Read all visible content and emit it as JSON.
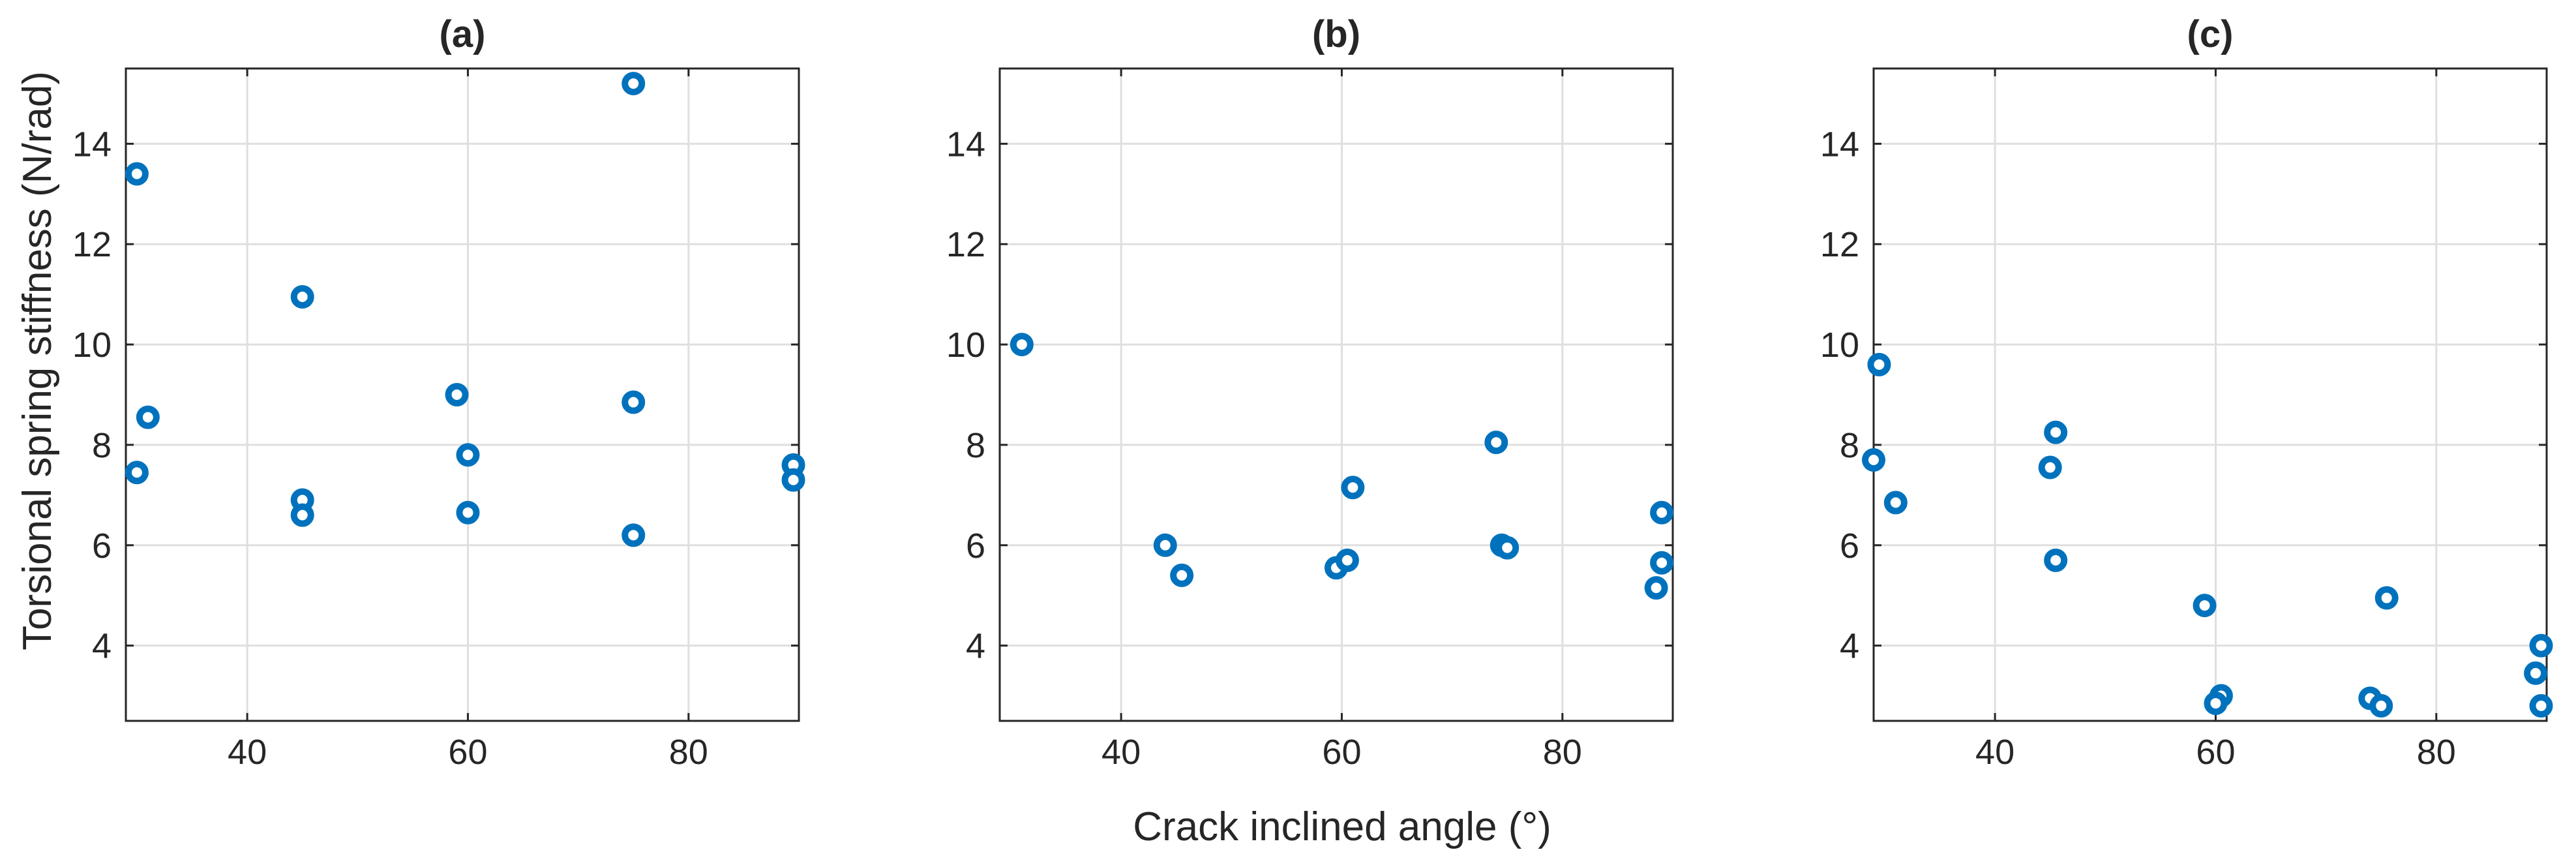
{
  "chart_data": {
    "type": "scatter",
    "xlabel": "Crack inclined angle (°)",
    "ylabel": "Torsional spring stiffness (N/rad)",
    "xlim": [
      29,
      90
    ],
    "ylim": [
      2.5,
      15.5
    ],
    "xticks": [
      40,
      60,
      80
    ],
    "yticks": [
      4,
      6,
      8,
      10,
      12,
      14
    ],
    "grid": true,
    "marker_color": "#0072BD",
    "panels": [
      {
        "title": "(a)",
        "points": [
          {
            "x": 30,
            "y": 13.4
          },
          {
            "x": 30,
            "y": 7.45
          },
          {
            "x": 31,
            "y": 8.55
          },
          {
            "x": 45,
            "y": 10.95
          },
          {
            "x": 45,
            "y": 6.9
          },
          {
            "x": 45,
            "y": 6.6
          },
          {
            "x": 59,
            "y": 9.0
          },
          {
            "x": 60,
            "y": 7.8
          },
          {
            "x": 60,
            "y": 6.65
          },
          {
            "x": 75,
            "y": 15.2
          },
          {
            "x": 75,
            "y": 8.85
          },
          {
            "x": 75,
            "y": 6.2
          },
          {
            "x": 89.5,
            "y": 7.6
          },
          {
            "x": 89.5,
            "y": 7.3
          }
        ]
      },
      {
        "title": "(b)",
        "points": [
          {
            "x": 31,
            "y": 10.0
          },
          {
            "x": 44,
            "y": 6.0
          },
          {
            "x": 45.5,
            "y": 5.4
          },
          {
            "x": 59.5,
            "y": 5.55
          },
          {
            "x": 60.5,
            "y": 5.7
          },
          {
            "x": 61,
            "y": 7.15
          },
          {
            "x": 74,
            "y": 8.05
          },
          {
            "x": 74.5,
            "y": 6.0
          },
          {
            "x": 75,
            "y": 5.95
          },
          {
            "x": 89,
            "y": 6.65
          },
          {
            "x": 89,
            "y": 5.65
          },
          {
            "x": 88.5,
            "y": 5.15
          }
        ]
      },
      {
        "title": "(c)",
        "points": [
          {
            "x": 29.5,
            "y": 9.6
          },
          {
            "x": 29,
            "y": 7.7
          },
          {
            "x": 31,
            "y": 6.85
          },
          {
            "x": 45.5,
            "y": 8.25
          },
          {
            "x": 45,
            "y": 7.55
          },
          {
            "x": 45.5,
            "y": 5.7
          },
          {
            "x": 59,
            "y": 4.8
          },
          {
            "x": 60.5,
            "y": 3.0
          },
          {
            "x": 60,
            "y": 2.85
          },
          {
            "x": 75.5,
            "y": 4.95
          },
          {
            "x": 74,
            "y": 2.95
          },
          {
            "x": 75,
            "y": 2.8
          },
          {
            "x": 89.5,
            "y": 4.0
          },
          {
            "x": 89,
            "y": 3.45
          },
          {
            "x": 89.5,
            "y": 2.8
          }
        ]
      }
    ]
  }
}
